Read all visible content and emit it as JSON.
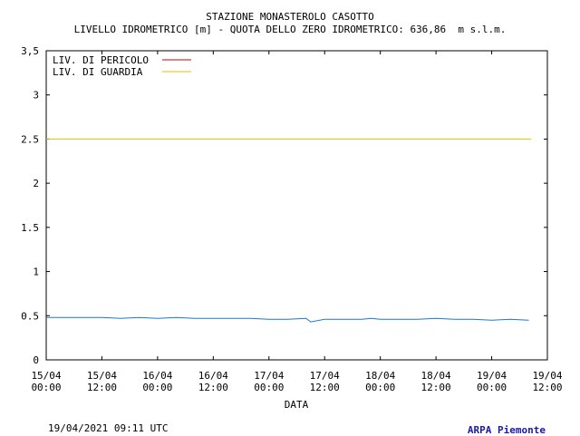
{
  "chart_data": {
    "type": "line",
    "title": "STAZIONE MONASTEROLO CASOTTO",
    "subtitle": "LIVELLO IDROMETRICO [m] - QUOTA DELLO ZERO IDROMETRICO: 636,86  m s.l.m.",
    "xlabel": "DATA",
    "ylabel": "",
    "ylim": [
      0,
      3.5
    ],
    "yticks": [
      "0",
      "0.5",
      "1",
      "1.5",
      "2",
      "2.5",
      "3",
      "3,5"
    ],
    "xticks": [
      [
        "15/04",
        "00:00"
      ],
      [
        "15/04",
        "12:00"
      ],
      [
        "16/04",
        "00:00"
      ],
      [
        "16/04",
        "12:00"
      ],
      [
        "17/04",
        "00:00"
      ],
      [
        "17/04",
        "12:00"
      ],
      [
        "18/04",
        "00:00"
      ],
      [
        "18/04",
        "12:00"
      ],
      [
        "19/04",
        "00:00"
      ],
      [
        "19/04",
        "12:00"
      ]
    ],
    "x_unit": "hours since 15/04 00:00",
    "xlim": [
      0,
      108
    ],
    "legend": {
      "placement": "top-left"
    },
    "thresholds": [
      {
        "name": "LIV. DI PERICOLO",
        "value": null,
        "color": "#cc0000"
      },
      {
        "name": "LIV. DI GUARDIA",
        "value": 2.5,
        "color": "#e6c000"
      }
    ],
    "series": [
      {
        "name": "",
        "color": "#1f77d0",
        "x": [
          0,
          4,
          8,
          12,
          16,
          20,
          24,
          28,
          32,
          36,
          40,
          44,
          48,
          52,
          56,
          57,
          60,
          64,
          68,
          70,
          72,
          76,
          80,
          84,
          88,
          92,
          96,
          100,
          104
        ],
        "y": [
          0.48,
          0.48,
          0.48,
          0.48,
          0.47,
          0.48,
          0.47,
          0.48,
          0.47,
          0.47,
          0.47,
          0.47,
          0.46,
          0.46,
          0.47,
          0.43,
          0.46,
          0.46,
          0.46,
          0.47,
          0.46,
          0.46,
          0.46,
          0.47,
          0.46,
          0.46,
          0.45,
          0.46,
          0.45
        ]
      }
    ]
  },
  "footer": {
    "timestamp": "19/04/2021 09:11 UTC",
    "credit": "ARPA Piemonte",
    "credit_color": "#1a1aa0"
  }
}
